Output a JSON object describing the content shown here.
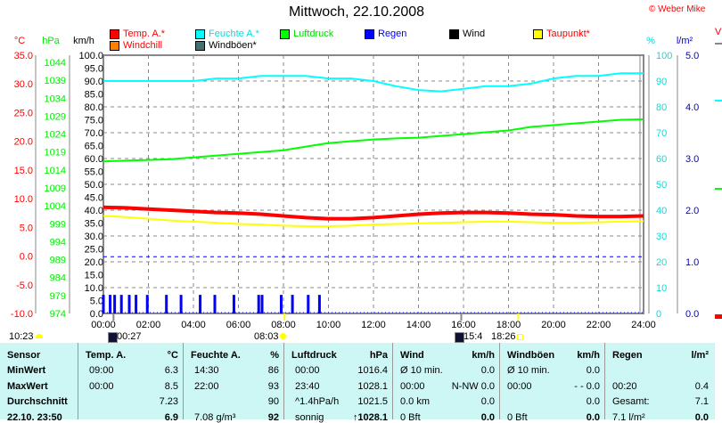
{
  "title": "Mittwoch, 22.10.2008",
  "copyright": "© Weber Mike",
  "legend": [
    {
      "label": "Temp. A.*",
      "color": "#ff0000",
      "text_color": "#ff0000"
    },
    {
      "label": "Feuchte A.*",
      "color": "#00ffff",
      "text_color": "#00e0e0"
    },
    {
      "label": "Luftdruck",
      "color": "#00ff00",
      "text_color": "#00dd00"
    },
    {
      "label": "Regen",
      "color": "#0000ff",
      "text_color": "#0000ff"
    },
    {
      "label": "Wind",
      "color": "#000000",
      "text_color": "#000000"
    },
    {
      "label": "Taupunkt*",
      "color": "#ffff00",
      "text_color": "#ff0000"
    },
    {
      "label": "Windchill",
      "color": "#ff8000",
      "text_color": "#ff0000"
    },
    {
      "label": "Windböen*",
      "color": "#407070",
      "text_color": "#000000"
    }
  ],
  "chart_data": {
    "type": "line",
    "title": "Mittwoch, 22.10.2008",
    "x_hours": [
      0,
      1,
      2,
      3,
      4,
      5,
      6,
      7,
      8,
      9,
      10,
      11,
      12,
      13,
      14,
      15,
      16,
      17,
      18,
      19,
      20,
      21,
      22,
      23,
      24
    ],
    "x_ticks": [
      "00:00",
      "02:00",
      "04:00",
      "06:00",
      "08:00",
      "10:00",
      "12:00",
      "14:00",
      "16:00",
      "18:00",
      "20:00",
      "22:00",
      "24:00"
    ],
    "axes": {
      "temp": {
        "unit": "°C",
        "range": [
          -10,
          35
        ],
        "ticks": [
          "35.0",
          "30.0",
          "25.0",
          "20.0",
          "15.0",
          "10.0",
          "5.0",
          "0.0",
          "-5.0",
          "-10.0"
        ],
        "color": "#ff0000"
      },
      "pressure": {
        "unit": "hPa",
        "range": [
          974,
          1044
        ],
        "ticks": [
          "1044",
          "1039",
          "1034",
          "1029",
          "1024",
          "1019",
          "1014",
          "1009",
          "1004",
          "999",
          "994",
          "989",
          "984",
          "979",
          "974"
        ],
        "color": "#00ee00"
      },
      "wind": {
        "unit": "km/h",
        "range": [
          0,
          100
        ],
        "ticks": [
          "100.0",
          "95.0",
          "90.0",
          "85.0",
          "80.0",
          "75.0",
          "70.0",
          "65.0",
          "60.0",
          "55.0",
          "50.0",
          "45.0",
          "40.0",
          "35.0",
          "30.0",
          "25.0",
          "20.0",
          "15.0",
          "10.0",
          "5.0",
          "0.0"
        ],
        "color": "#000000"
      },
      "humidity": {
        "unit": "%",
        "range": [
          0,
          100
        ],
        "ticks": [
          "100",
          "90",
          "80",
          "70",
          "60",
          "50",
          "40",
          "30",
          "20",
          "10",
          "0"
        ],
        "color": "#00e0e0"
      },
      "rain": {
        "unit": "l/m²",
        "range": [
          0,
          5
        ],
        "ticks": [
          "5.0",
          "4.0",
          "3.0",
          "2.0",
          "1.0",
          "0.0"
        ],
        "color": "#0000cc"
      }
    },
    "series": [
      {
        "name": "Feuchte A.*",
        "axis": "humidity",
        "color": "#00ffff",
        "width": 2,
        "values": [
          90,
          90,
          90,
          90,
          90,
          91,
          91,
          92,
          92,
          92,
          91,
          91,
          90,
          88,
          86.5,
          86,
          87,
          88,
          88,
          89,
          91,
          92,
          92,
          93,
          93
        ]
      },
      {
        "name": "Luftdruck",
        "axis": "pressure",
        "color": "#00ff00",
        "width": 2,
        "values": [
          1016.4,
          1016.6,
          1016.8,
          1017,
          1017.5,
          1018,
          1018.5,
          1019,
          1019.5,
          1020.5,
          1021.5,
          1022,
          1022.5,
          1022.8,
          1023,
          1023.5,
          1024,
          1024.5,
          1025,
          1026,
          1026.5,
          1027,
          1027.5,
          1028,
          1028.1
        ]
      },
      {
        "name": "Taupunkt*",
        "axis": "temp",
        "color": "#ffff00",
        "width": 2,
        "values": [
          7.0,
          6.8,
          6.5,
          6.2,
          6.0,
          5.8,
          5.6,
          5.5,
          5.3,
          5.2,
          5.2,
          5.3,
          5.5,
          5.6,
          5.7,
          5.8,
          5.9,
          6.0,
          6.0,
          5.9,
          5.8,
          5.8,
          5.9,
          6.0,
          6.1
        ]
      },
      {
        "name": "Temp. A.*",
        "axis": "temp",
        "color": "#ff0000",
        "width": 4,
        "values": [
          8.5,
          8.4,
          8.2,
          8.0,
          7.8,
          7.6,
          7.5,
          7.3,
          7.0,
          6.7,
          6.5,
          6.5,
          6.7,
          7.0,
          7.3,
          7.5,
          7.6,
          7.6,
          7.5,
          7.3,
          7.2,
          7.0,
          6.9,
          6.9,
          7.0
        ]
      }
    ],
    "reference_line": {
      "axis": "wind",
      "value": 22,
      "color": "#0000ff"
    },
    "rain_bars": {
      "axis": "wind",
      "value": 7.2,
      "hours": [
        0,
        0.3,
        0.5,
        0.8,
        1.15,
        1.45,
        1.95,
        2.8,
        3.45,
        4.3,
        4.95,
        5.8,
        6.9,
        7.05,
        7.9,
        8.4,
        9.1,
        9.6
      ]
    },
    "sun_markers": [
      8.05,
      18.43
    ],
    "moon_markers": [
      0.45,
      15.9
    ]
  },
  "astro": {
    "moonset": "10:23",
    "moonrise": "00:27",
    "sunrise": "08:03",
    "moon2": "15:4",
    "sunset": "18:26"
  },
  "table": {
    "headers": [
      [
        "Sensor",
        ""
      ],
      [
        "Temp. A.",
        "°C"
      ],
      [
        "Feuchte A.",
        "%"
      ],
      [
        "Luftdruck",
        "hPa"
      ],
      [
        "Wind",
        "km/h"
      ],
      [
        "Windböen",
        "km/h"
      ],
      [
        "Regen",
        "l/m²"
      ]
    ],
    "rows": [
      {
        "label": "MinWert",
        "cells": [
          [
            "09:00",
            "6.3"
          ],
          [
            "14:30",
            "86"
          ],
          [
            "00:00",
            "1016.4"
          ],
          [
            "Ø 10 min.",
            "0.0"
          ],
          [
            "Ø 10 min.",
            "0.0"
          ],
          [
            "",
            ""
          ]
        ]
      },
      {
        "label": "MaxWert",
        "cells": [
          [
            "00:00",
            "8.5"
          ],
          [
            "22:00",
            "93"
          ],
          [
            "23:40",
            "1028.1"
          ],
          [
            "00:00",
            "N-NW 0.0"
          ],
          [
            "00:00",
            "- - 0.0"
          ],
          [
            "00:20",
            "0.4"
          ]
        ]
      },
      {
        "label": "Durchschnitt",
        "cells": [
          [
            "",
            "7.23"
          ],
          [
            "",
            "90"
          ],
          [
            "^1.4hPa/h",
            "1021.5"
          ],
          [
            "0.0 km",
            "0.0"
          ],
          [
            "",
            "0.0"
          ],
          [
            "Gesamt:",
            "7.1"
          ]
        ]
      },
      {
        "label": "22.10. 23:50",
        "cells": [
          [
            "",
            "6.9"
          ],
          [
            "7.08 g/m³",
            "92"
          ],
          [
            "sonnig",
            "↑1028.1"
          ],
          [
            "0 Bft",
            "0.0"
          ],
          [
            "0 Bft",
            "0.0"
          ],
          [
            "7.1 l/m²",
            "0.0"
          ]
        ]
      }
    ]
  }
}
